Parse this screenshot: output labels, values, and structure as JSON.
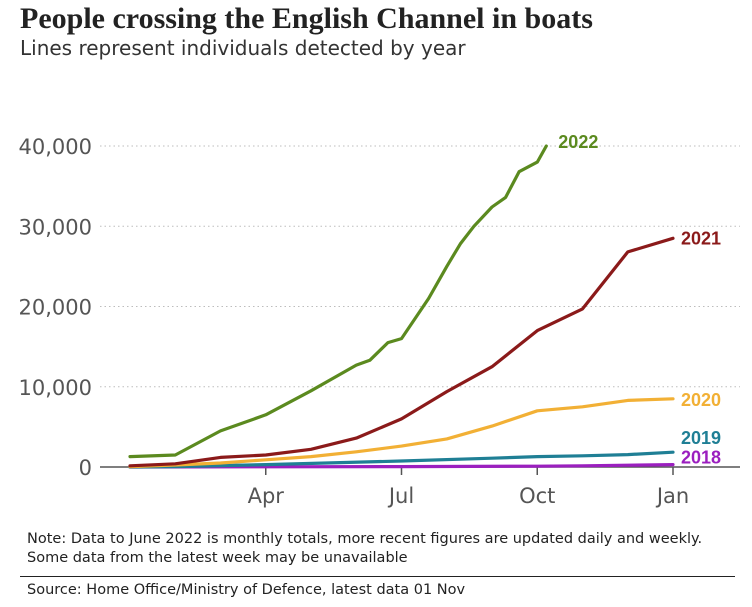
{
  "header": {
    "title": "People crossing the English Channel in boats",
    "subtitle": "Lines represent individuals detected by year"
  },
  "footer": {
    "note": "Note: Data to June 2022 is monthly totals, more recent figures are updated daily and weekly. Some data from the latest week may be unavailable",
    "source": "Source: Home Office/Ministry of Defence, latest data 01 Nov"
  },
  "chart_data": {
    "type": "line",
    "x_axis": {
      "unit": "month of year (1 = 1 Jan, 13 = 1 Jan of following year)",
      "range": [
        1,
        13
      ],
      "ticks": [
        {
          "value": 4,
          "label": "Apr"
        },
        {
          "value": 7,
          "label": "Jul"
        },
        {
          "value": 10,
          "label": "Oct"
        },
        {
          "value": 13,
          "label": "Jan"
        }
      ]
    },
    "y_axis": {
      "range": [
        0,
        40000
      ],
      "ticks": [
        {
          "value": 0,
          "label": "0"
        },
        {
          "value": 10000,
          "label": "10,000"
        },
        {
          "value": 20000,
          "label": "20,000"
        },
        {
          "value": 30000,
          "label": "30,000"
        },
        {
          "value": 40000,
          "label": "40,000"
        }
      ]
    },
    "grid": "horizontal dotted",
    "legend": "labels at line ends",
    "series": [
      {
        "name": "2018",
        "color": "#9b1fbf",
        "points": [
          [
            1,
            0
          ],
          [
            4,
            20
          ],
          [
            7,
            50
          ],
          [
            10,
            100
          ],
          [
            11,
            150
          ],
          [
            12,
            220
          ],
          [
            13,
            300
          ]
        ]
      },
      {
        "name": "2019",
        "color": "#1f7f95",
        "points": [
          [
            1,
            0
          ],
          [
            2,
            50
          ],
          [
            4,
            300
          ],
          [
            7,
            750
          ],
          [
            9,
            1100
          ],
          [
            10,
            1300
          ],
          [
            11,
            1400
          ],
          [
            12,
            1550
          ],
          [
            13,
            1850
          ]
        ]
      },
      {
        "name": "2020",
        "color": "#f2b035",
        "points": [
          [
            1,
            50
          ],
          [
            2,
            250
          ],
          [
            3,
            500
          ],
          [
            4,
            900
          ],
          [
            5,
            1300
          ],
          [
            6,
            1900
          ],
          [
            7,
            2600
          ],
          [
            8,
            3500
          ],
          [
            9,
            5100
          ],
          [
            10,
            7000
          ],
          [
            11,
            7500
          ],
          [
            12,
            8300
          ],
          [
            13,
            8500
          ]
        ]
      },
      {
        "name": "2021",
        "color": "#8b1a1a",
        "points": [
          [
            1,
            150
          ],
          [
            2,
            400
          ],
          [
            3,
            1200
          ],
          [
            4,
            1500
          ],
          [
            5,
            2200
          ],
          [
            6,
            3600
          ],
          [
            7,
            6000
          ],
          [
            8,
            9400
          ],
          [
            9,
            12500
          ],
          [
            10,
            17000
          ],
          [
            11,
            19700
          ],
          [
            12,
            26800
          ],
          [
            13,
            28500
          ]
        ]
      },
      {
        "name": "2022",
        "color": "#5b8a1f",
        "points": [
          [
            1,
            1300
          ],
          [
            2,
            1500
          ],
          [
            3,
            4500
          ],
          [
            4,
            6500
          ],
          [
            5,
            9500
          ],
          [
            6,
            12700
          ],
          [
            6.3,
            13300
          ],
          [
            6.7,
            15500
          ],
          [
            7,
            16000
          ],
          [
            7.3,
            18500
          ],
          [
            7.6,
            21000
          ],
          [
            8,
            25000
          ],
          [
            8.3,
            27800
          ],
          [
            8.6,
            30000
          ],
          [
            9,
            32400
          ],
          [
            9.3,
            33600
          ],
          [
            9.6,
            36800
          ],
          [
            10,
            38000
          ],
          [
            10.2,
            40000
          ]
        ]
      }
    ]
  }
}
